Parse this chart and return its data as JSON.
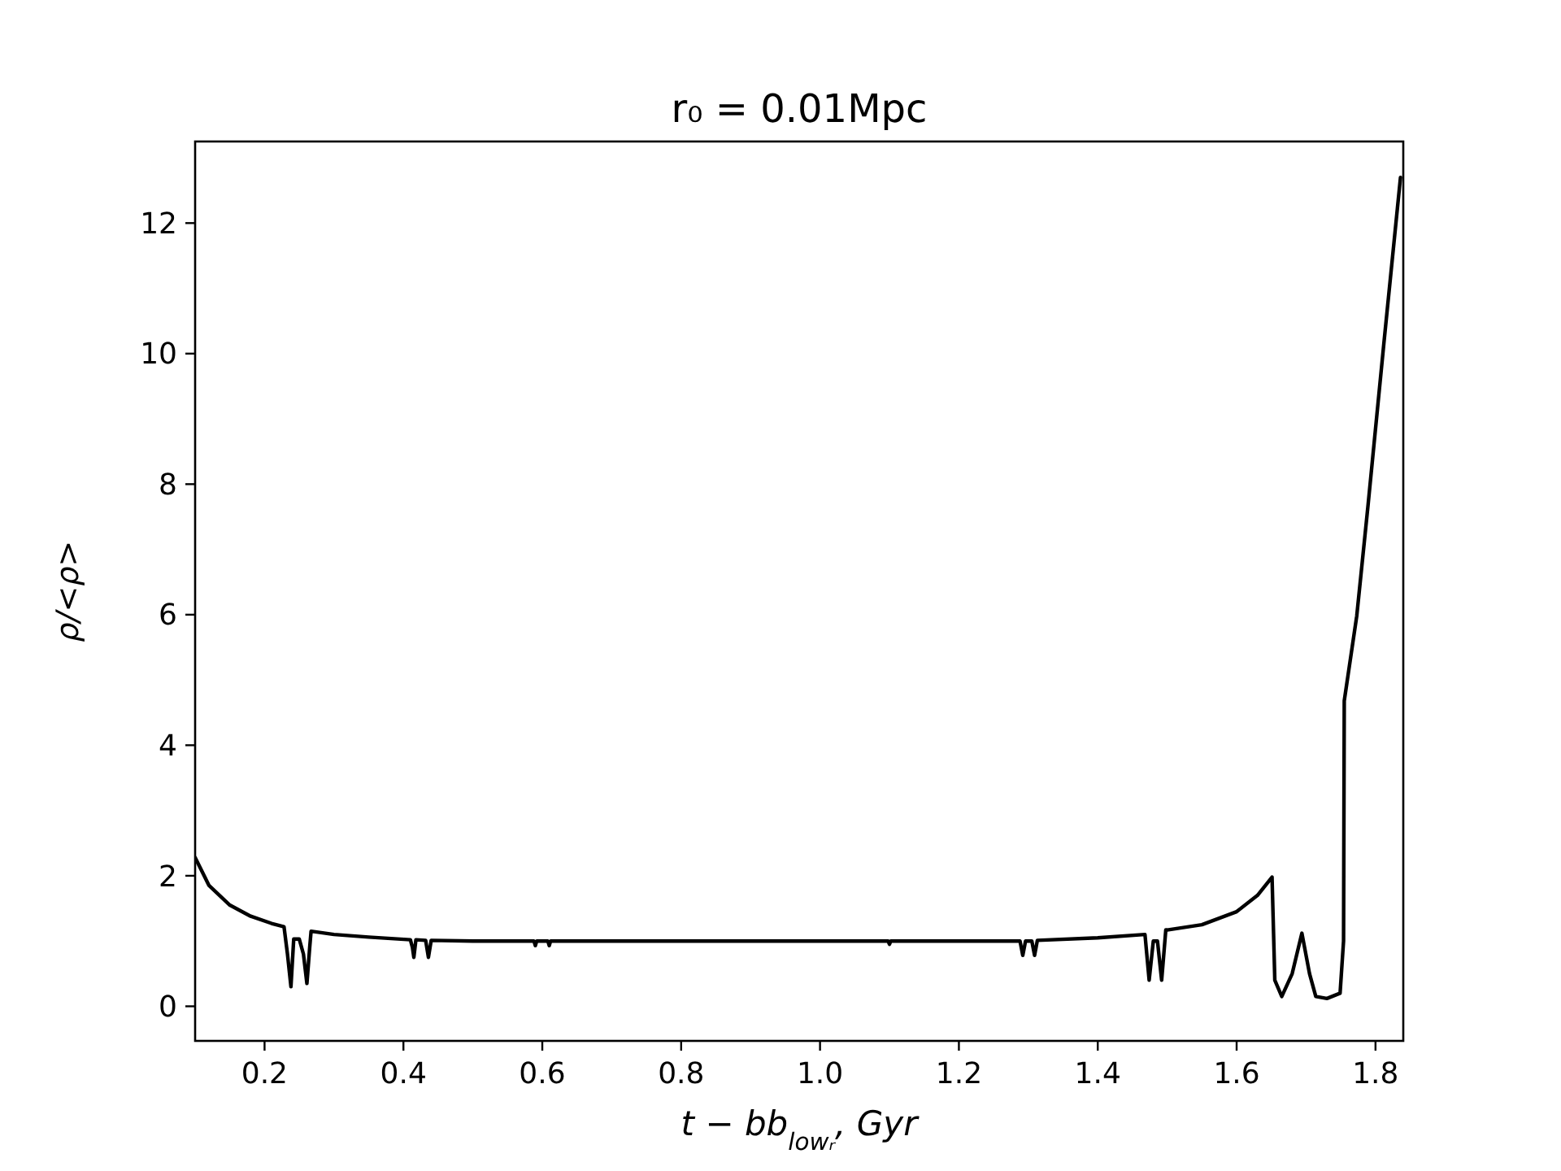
{
  "chart_data": {
    "type": "line",
    "title": "r₀ = 0.01Mpc",
    "xlabel": "t − bb$_{lowᵣ}$, Gyr",
    "ylabel": "ρ/<ρ>",
    "xlim": [
      0.1,
      1.84
    ],
    "ylim": [
      -0.53,
      13.25
    ],
    "xticks": [
      0.2,
      0.4,
      0.6,
      0.8,
      {
        "value": 1.0,
        "label": "1.0"
      },
      1.2,
      1.4,
      1.6,
      1.8
    ],
    "yticks": [
      0,
      2,
      4,
      6,
      8,
      10,
      12
    ],
    "grid": false,
    "marker": "none",
    "line_style": "solid",
    "series": [
      {
        "color": "#000000",
        "x": [
          0.1,
          0.12,
          0.15,
          0.18,
          0.21,
          0.228,
          0.233,
          0.238,
          0.242,
          0.25,
          0.256,
          0.261,
          0.265,
          0.267,
          0.3,
          0.35,
          0.41,
          0.413,
          0.415,
          0.418,
          0.432,
          0.436,
          0.44,
          0.5,
          0.588,
          0.59,
          0.592,
          0.608,
          0.61,
          0.612,
          0.7,
          0.8,
          0.9,
          1.0,
          1.098,
          1.1,
          1.102,
          1.2,
          1.288,
          1.292,
          1.296,
          1.305,
          1.309,
          1.313,
          1.4,
          1.468,
          1.474,
          1.48,
          1.486,
          1.492,
          1.498,
          1.5,
          1.55,
          1.6,
          1.63,
          1.651,
          1.655,
          1.665,
          1.68,
          1.694,
          1.705,
          1.714,
          1.73,
          1.749,
          1.754,
          1.755,
          1.773,
          1.789,
          1.812,
          1.836
        ],
        "values": [
          2.28,
          1.85,
          1.55,
          1.38,
          1.27,
          1.22,
          0.8,
          0.3,
          1.03,
          1.03,
          0.8,
          0.35,
          0.9,
          1.15,
          1.1,
          1.06,
          1.02,
          0.9,
          0.75,
          1.02,
          1.01,
          0.75,
          1.01,
          1.0,
          1.0,
          0.93,
          1.0,
          1.0,
          0.93,
          1.0,
          1.0,
          1.0,
          1.0,
          1.0,
          1.0,
          0.95,
          1.0,
          1.0,
          1.0,
          0.78,
          1.0,
          1.0,
          0.78,
          1.01,
          1.05,
          1.1,
          0.4,
          1.0,
          1.0,
          0.4,
          1.17,
          1.17,
          1.25,
          1.45,
          1.7,
          1.98,
          0.4,
          0.15,
          0.5,
          1.12,
          0.5,
          0.15,
          0.12,
          0.2,
          1.0,
          4.68,
          5.98,
          7.65,
          10.15,
          12.7
        ]
      }
    ]
  }
}
